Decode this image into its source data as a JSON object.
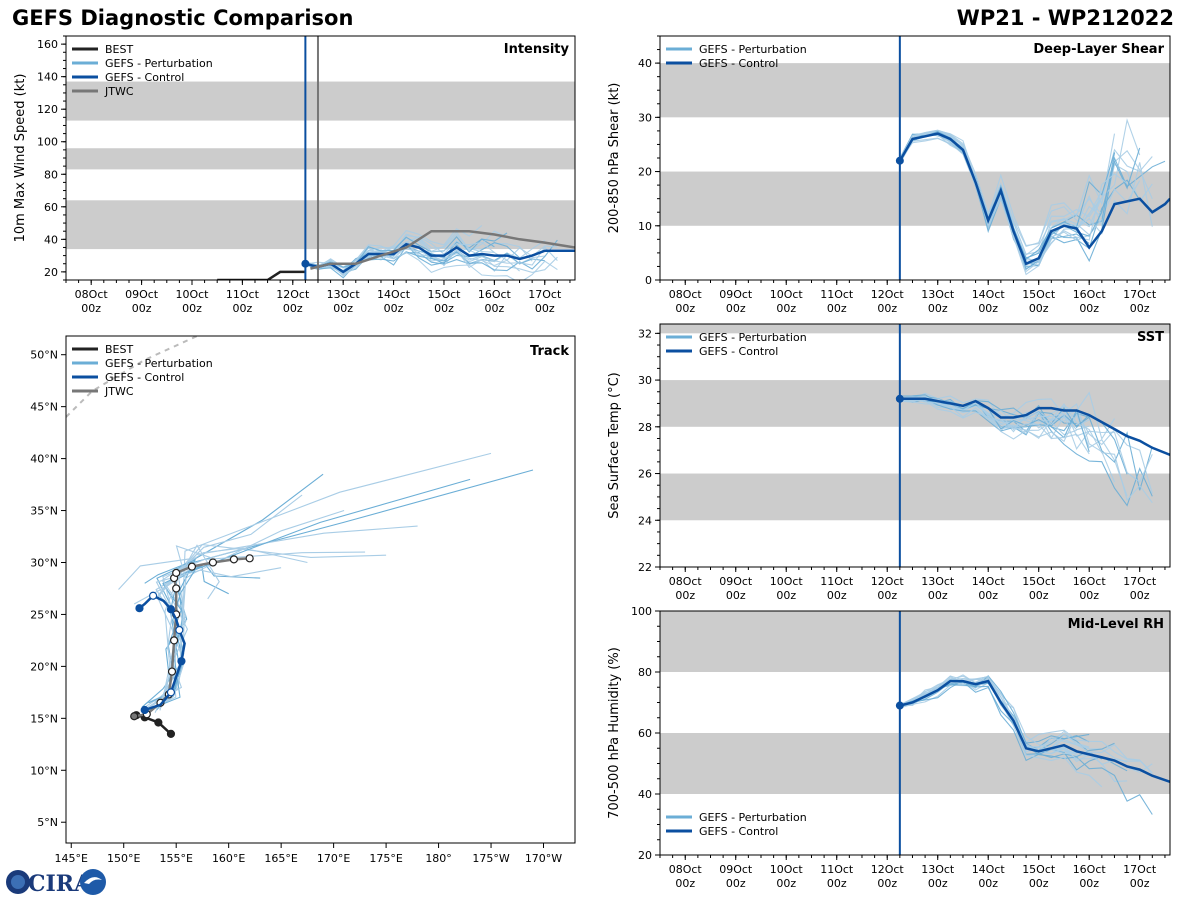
{
  "header": {
    "title": "GEFS Diagnostic Comparison",
    "storm": "WP21 - WP212022"
  },
  "logo": {
    "text": "CIRA",
    "colors": [
      "#1a3a7a",
      "#3c6fb5",
      "#1e5aa8"
    ]
  },
  "colors": {
    "best": "#222222",
    "perturbation": "#6baed6",
    "perturbation_light": "#a9cde6",
    "control": "#0b4fa0",
    "jtwc": "#777777",
    "band": "#cccccc",
    "init_line": "#0b4fa0"
  },
  "time_axis": {
    "ticks": [
      "08Oct 00z",
      "09Oct 00z",
      "10Oct 00z",
      "11Oct 00z",
      "12Oct 00z",
      "13Oct 00z",
      "14Oct 00z",
      "15Oct 00z",
      "16Oct 00z",
      "17Oct 00z"
    ],
    "range_days": [
      -0.5,
      9.6
    ],
    "init_day": 4.25
  },
  "chart_data": [
    {
      "id": "intensity",
      "type": "line",
      "title": "Intensity",
      "ylabel": "10m Max Wind Speed (kt)",
      "ylim": [
        15,
        165
      ],
      "yticks": [
        20,
        40,
        60,
        80,
        100,
        120,
        140,
        160
      ],
      "bands": [
        [
          34,
          64
        ],
        [
          83,
          96
        ],
        [
          113,
          137
        ]
      ],
      "legend": [
        "BEST",
        "GEFS - Perturbation",
        "GEFS - Control",
        "JTWC"
      ],
      "jtwc_vline_day": 4.5,
      "series": [
        {
          "name": "BEST",
          "x": [
            2.5,
            3.0,
            3.5,
            3.75,
            4.25
          ],
          "values": [
            15,
            15,
            15,
            20,
            20
          ]
        },
        {
          "name": "GEFS - Control",
          "x": [
            4.25,
            4.5,
            4.75,
            5.0,
            5.25,
            5.5,
            5.75,
            6.0,
            6.25,
            6.5,
            6.75,
            7.0,
            7.25,
            7.5,
            7.75,
            8.0,
            8.25,
            8.5,
            8.75,
            9.0,
            9.25,
            9.6
          ],
          "values": [
            25,
            23,
            25,
            20,
            25,
            31,
            31,
            31,
            37,
            35,
            30,
            30,
            35,
            30,
            31,
            30,
            30,
            28,
            30,
            33,
            33,
            33
          ]
        },
        {
          "name": "JTWC",
          "x": [
            4.35,
            4.75,
            5.25,
            5.75,
            6.25,
            6.75,
            7.0,
            7.5,
            8.0,
            8.5,
            9.0,
            9.6
          ],
          "values": [
            22,
            25,
            25,
            30,
            35,
            45,
            45,
            45,
            43,
            40,
            38,
            35
          ]
        }
      ]
    },
    {
      "id": "shear",
      "type": "line",
      "title": "Deep-Layer Shear",
      "ylabel": "200-850 hPa Shear (kt)",
      "ylim": [
        0,
        45
      ],
      "yticks": [
        0,
        10,
        20,
        30,
        40
      ],
      "bands": [
        [
          10,
          20
        ],
        [
          30,
          40
        ]
      ],
      "legend": [
        "GEFS - Perturbation",
        "GEFS - Control"
      ],
      "series": [
        {
          "name": "GEFS - Control",
          "x": [
            4.25,
            4.5,
            4.75,
            5.0,
            5.25,
            5.5,
            5.75,
            6.0,
            6.25,
            6.5,
            6.75,
            7.0,
            7.25,
            7.5,
            7.75,
            8.0,
            8.25,
            8.5,
            8.75,
            9.0,
            9.25,
            9.5,
            9.6
          ],
          "values": [
            22,
            26,
            26.5,
            27,
            26,
            24,
            18,
            11,
            16.5,
            9,
            3,
            4,
            9,
            10,
            9.5,
            6,
            9,
            14,
            14.5,
            15,
            12.5,
            14,
            15
          ]
        }
      ]
    },
    {
      "id": "sst",
      "type": "line",
      "title": "SST",
      "ylabel": "Sea Surface Temp (°C)",
      "ylim": [
        22,
        32.4
      ],
      "yticks": [
        22,
        24,
        26,
        28,
        30,
        32
      ],
      "bands": [
        [
          24,
          26
        ],
        [
          28,
          30
        ],
        [
          32,
          34
        ]
      ],
      "legend": [
        "GEFS - Perturbation",
        "GEFS - Control"
      ],
      "series": [
        {
          "name": "GEFS - Control",
          "x": [
            4.25,
            4.5,
            4.75,
            5.0,
            5.25,
            5.5,
            5.75,
            6.0,
            6.25,
            6.5,
            6.75,
            7.0,
            7.25,
            7.5,
            7.75,
            8.0,
            8.25,
            8.5,
            8.75,
            9.0,
            9.25,
            9.6
          ],
          "values": [
            29.2,
            29.2,
            29.2,
            29.1,
            29.0,
            28.9,
            29.1,
            28.8,
            28.4,
            28.4,
            28.5,
            28.8,
            28.8,
            28.7,
            28.7,
            28.5,
            28.2,
            27.9,
            27.6,
            27.4,
            27.1,
            26.8
          ]
        }
      ]
    },
    {
      "id": "rh",
      "type": "line",
      "title": "Mid-Level RH",
      "ylabel": "700-500 hPa Humidity (%)",
      "ylim": [
        20,
        100
      ],
      "yticks": [
        20,
        40,
        60,
        80,
        100
      ],
      "bands": [
        [
          40,
          60
        ],
        [
          80,
          100
        ]
      ],
      "legend": [
        "GEFS - Perturbation",
        "GEFS - Control"
      ],
      "series": [
        {
          "name": "GEFS - Control",
          "x": [
            4.25,
            4.5,
            4.75,
            5.0,
            5.25,
            5.5,
            5.75,
            6.0,
            6.25,
            6.5,
            6.75,
            7.0,
            7.25,
            7.5,
            7.75,
            8.0,
            8.25,
            8.5,
            8.75,
            9.0,
            9.25,
            9.6
          ],
          "values": [
            69,
            70,
            72,
            74,
            77,
            77,
            76,
            77,
            70,
            64,
            55,
            54,
            55,
            56,
            54,
            53,
            52,
            51,
            49,
            48,
            46,
            44
          ]
        }
      ]
    },
    {
      "id": "track",
      "type": "line",
      "title": "Track",
      "xlabel": "",
      "ylabel": "",
      "lon_range": [
        144.5,
        193.0
      ],
      "lat_range": [
        3,
        51.8
      ],
      "lon_ticks": [
        145,
        150,
        155,
        160,
        165,
        170,
        175,
        180,
        185,
        190
      ],
      "lon_tick_labels": [
        "145°E",
        "150°E",
        "155°E",
        "160°E",
        "165°E",
        "170°E",
        "175°E",
        "180°",
        "175°W",
        "170°W"
      ],
      "lat_ticks": [
        5,
        10,
        15,
        20,
        25,
        30,
        35,
        40,
        45,
        50
      ],
      "lat_tick_labels": [
        "5°N",
        "10°N",
        "15°N",
        "20°N",
        "25°N",
        "30°N",
        "35°N",
        "40°N",
        "45°N",
        "50°N"
      ],
      "legend": [
        "BEST",
        "GEFS - Perturbation",
        "GEFS - Control",
        "JTWC"
      ],
      "series": [
        {
          "name": "BEST",
          "lon": [
            154.5,
            153.3,
            152.0,
            151.2
          ],
          "lat": [
            13.5,
            14.6,
            15.1,
            15.3
          ]
        },
        {
          "name": "JTWC",
          "lon": [
            151.0,
            152.2,
            153.5,
            154.3,
            154.6,
            154.8,
            155.0,
            155.0,
            154.8,
            155.0,
            156.5,
            158.5,
            160.5,
            162.0
          ],
          "lat": [
            15.2,
            15.4,
            16.5,
            17.3,
            19.5,
            22.5,
            25.0,
            27.5,
            28.5,
            29.0,
            29.6,
            30.0,
            30.3,
            30.4
          ]
        },
        {
          "name": "GEFS - Control",
          "lon": [
            152.0,
            153.5,
            154.5,
            155.0,
            155.5,
            155.8,
            155.3,
            155.0,
            154.5,
            153.8,
            152.8,
            152.0,
            151.5
          ],
          "lat": [
            15.8,
            16.3,
            17.5,
            19.0,
            20.5,
            22.2,
            23.5,
            24.5,
            25.5,
            26.3,
            26.8,
            26.0,
            25.6
          ]
        }
      ]
    }
  ]
}
